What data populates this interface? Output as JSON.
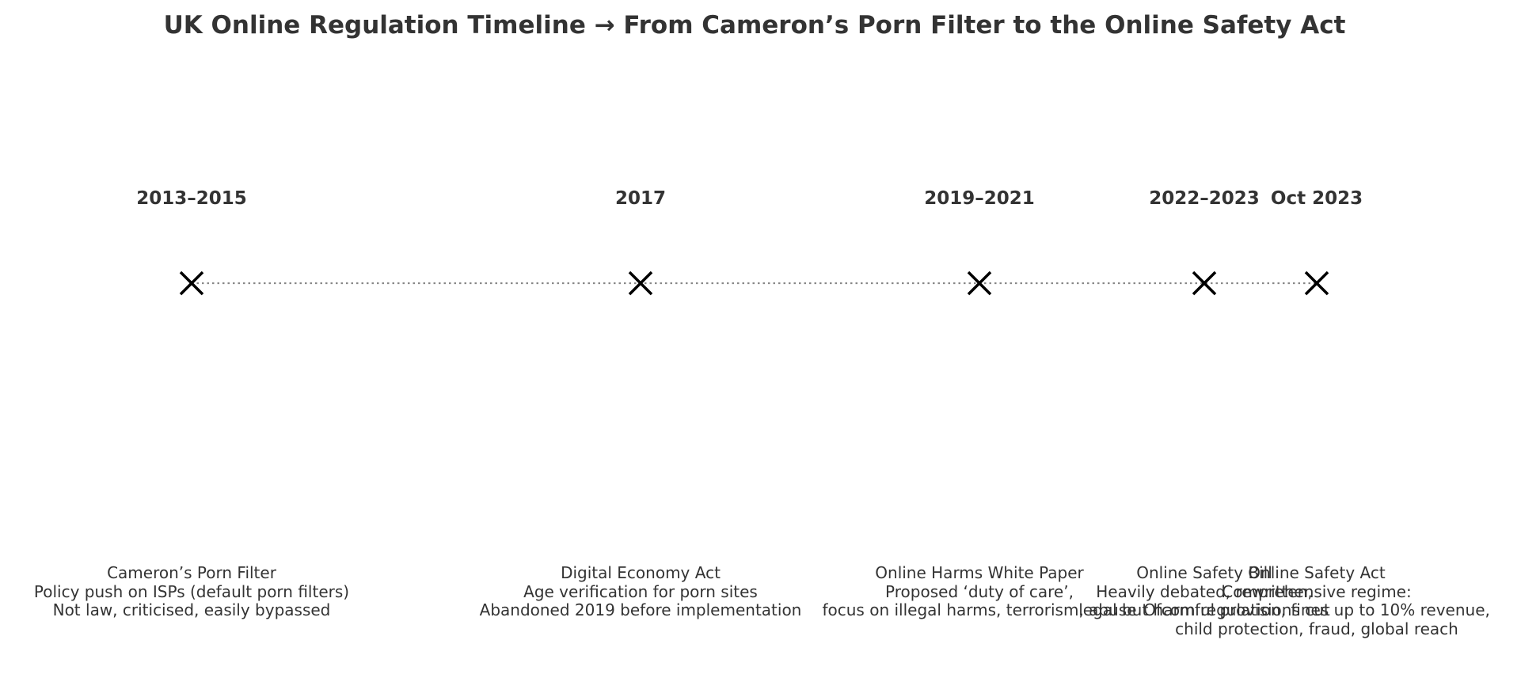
{
  "title": "UK Online Regulation Timeline → From Cameron’s Porn Filter to the Online Safety Act",
  "colors": {
    "text": "#333333",
    "marker": "#000000",
    "connector": "#888888"
  },
  "marker_icon": "x-cross-icon",
  "events": [
    {
      "period": "2013–2015",
      "name": "Cameron’s Porn Filter",
      "detail1": "Policy push on ISPs (default porn filters)",
      "detail2": "Not law, criticised, easily bypassed",
      "detail3": ""
    },
    {
      "period": "2017",
      "name": "Digital Economy Act",
      "detail1": "Age verification for porn sites",
      "detail2": "Abandoned 2019 before implementation",
      "detail3": ""
    },
    {
      "period": "2019–2021",
      "name": "Online Harms White Paper",
      "detail1": "Proposed ‘duty of care’,",
      "detail2": "focus on illegal harms, terrorism, abuse",
      "detail3": ""
    },
    {
      "period": "2022–2023",
      "name": "Online Safety Bill",
      "detail1": "Heavily debated, rewritten,",
      "detail2": "legal but harmful provisions cut",
      "detail3": ""
    },
    {
      "period": "Oct 2023",
      "name": "Online Safety Act",
      "detail1": "Comprehensive regime:",
      "detail2": "Ofcom regulation, fines up to 10% revenue,",
      "detail3": "child protection, fraud, global reach"
    }
  ]
}
